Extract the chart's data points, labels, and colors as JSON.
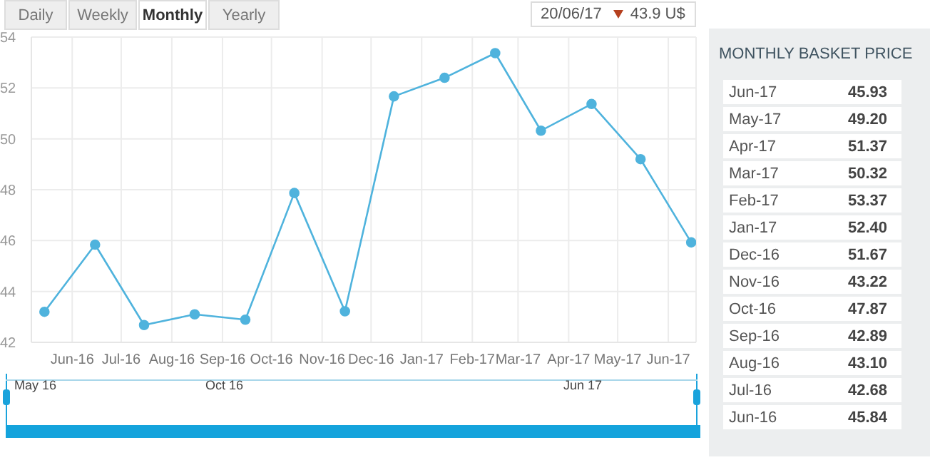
{
  "chart_data": [
    {
      "type": "line",
      "x": [
        "2016-05-15",
        "2016-06-15",
        "2016-07-15",
        "2016-08-15",
        "2016-09-15",
        "2016-10-15",
        "2016-11-15",
        "2016-12-15",
        "2017-01-15",
        "2017-02-15",
        "2017-03-15",
        "2017-04-15",
        "2017-05-15",
        "2017-06-15"
      ],
      "series": [
        {
          "color": "#4fb3dd",
          "values": [
            43.2,
            45.84,
            42.68,
            43.1,
            42.89,
            47.87,
            43.22,
            51.67,
            52.4,
            53.37,
            50.32,
            51.37,
            49.2,
            45.93
          ]
        }
      ],
      "xlim": [
        "2016-05-07",
        "2017-06-18"
      ],
      "xticks": [
        {
          "value": "2016-06-01",
          "label": "Jun-16"
        },
        {
          "value": "2016-07-01",
          "label": "Jul-16"
        },
        {
          "value": "2016-08-01",
          "label": "Aug-16"
        },
        {
          "value": "2016-09-01",
          "label": "Sep-16"
        },
        {
          "value": "2016-10-01",
          "label": "Oct-16"
        },
        {
          "value": "2016-11-01",
          "label": "Nov-16"
        },
        {
          "value": "2016-12-01",
          "label": "Dec-16"
        },
        {
          "value": "2017-01-01",
          "label": "Jan-17"
        },
        {
          "value": "2017-02-01",
          "label": "Feb-17"
        },
        {
          "value": "2017-03-01",
          "label": "Mar-17"
        },
        {
          "value": "2017-04-01",
          "label": "Apr-17"
        },
        {
          "value": "2017-05-01",
          "label": "May-17"
        },
        {
          "value": "2017-06-01",
          "label": "Jun-17"
        }
      ],
      "ylim": [
        42,
        54
      ],
      "yticks": [
        42,
        44,
        46,
        48,
        50,
        52,
        54
      ],
      "grid": true,
      "legend": false,
      "marker": "circle",
      "line_style": "solid",
      "annotations": [
        "Daily",
        "Weekly",
        "Monthly",
        "Yearly",
        "20/06/17",
        "43.9 U$",
        "May 16",
        "Oct 16",
        "Jun 17"
      ]
    },
    {
      "type": "other",
      "title": "MONTHLY BASKET PRICE",
      "annotations": [
        "Jun-17",
        "45.93",
        "May-17",
        "49.20",
        "Apr-17",
        "51.37",
        "Mar-17",
        "50.32",
        "Feb-17",
        "53.37",
        "Jan-17",
        "52.40",
        "Dec-16",
        "51.67",
        "Nov-16",
        "43.22",
        "Oct-16",
        "47.87",
        "Sep-16",
        "42.89",
        "Aug-16",
        "43.10",
        "Jul-16",
        "42.68",
        "Jun-16",
        "45.84"
      ]
    }
  ]
}
